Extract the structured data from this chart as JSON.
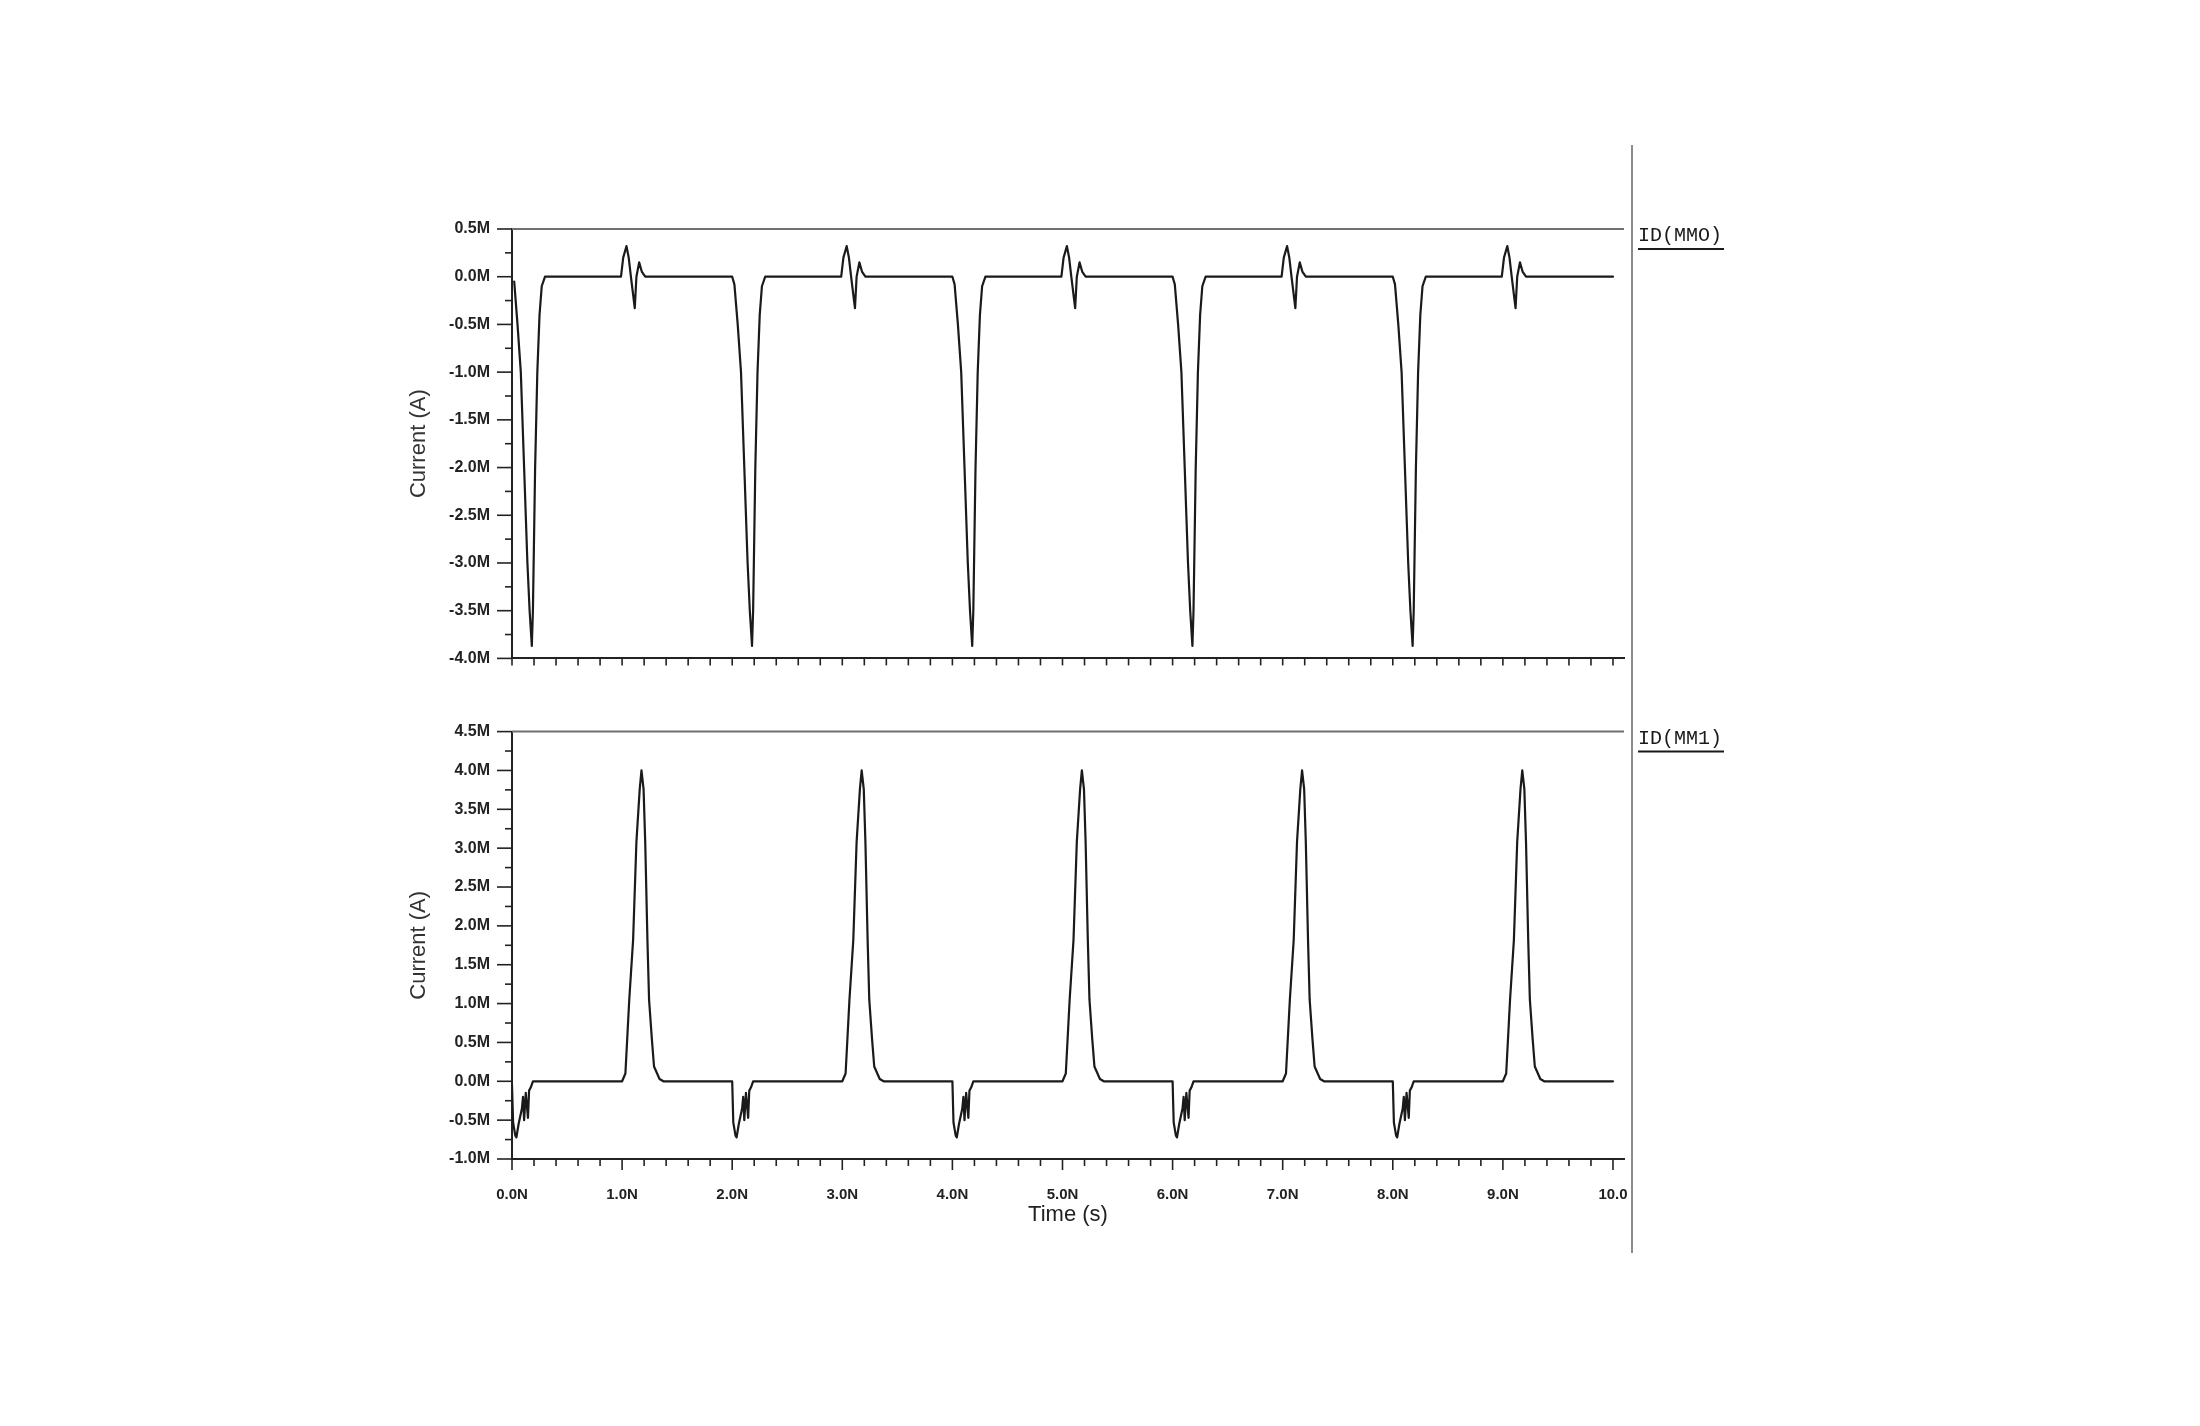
{
  "chart_data": [
    {
      "type": "line",
      "ylabel": "Current (A)",
      "legend": "top right",
      "marker": "none",
      "tick_labels": "y",
      "xlim": [
        0,
        10.1
      ],
      "xticks": [
        {
          "value": 0,
          "label": null
        },
        {
          "value": 0.2,
          "label": null
        },
        {
          "value": 0.4,
          "label": null
        },
        {
          "value": 0.6,
          "label": null
        },
        {
          "value": 0.8,
          "label": null
        },
        {
          "value": 1,
          "label": null
        },
        {
          "value": 1.2,
          "label": null
        },
        {
          "value": 1.4,
          "label": null
        },
        {
          "value": 1.6,
          "label": null
        },
        {
          "value": 1.8,
          "label": null
        },
        {
          "value": 2,
          "label": null
        },
        {
          "value": 2.2,
          "label": null
        },
        {
          "value": 2.4,
          "label": null
        },
        {
          "value": 2.6,
          "label": null
        },
        {
          "value": 2.8,
          "label": null
        },
        {
          "value": 3,
          "label": null
        },
        {
          "value": 3.2,
          "label": null
        },
        {
          "value": 3.4,
          "label": null
        },
        {
          "value": 3.6,
          "label": null
        },
        {
          "value": 3.8,
          "label": null
        },
        {
          "value": 4,
          "label": null
        },
        {
          "value": 4.2,
          "label": null
        },
        {
          "value": 4.4,
          "label": null
        },
        {
          "value": 4.6,
          "label": null
        },
        {
          "value": 4.8,
          "label": null
        },
        {
          "value": 5,
          "label": null
        },
        {
          "value": 5.2,
          "label": null
        },
        {
          "value": 5.4,
          "label": null
        },
        {
          "value": 5.6,
          "label": null
        },
        {
          "value": 5.8,
          "label": null
        },
        {
          "value": 6,
          "label": null
        },
        {
          "value": 6.2,
          "label": null
        },
        {
          "value": 6.4,
          "label": null
        },
        {
          "value": 6.6,
          "label": null
        },
        {
          "value": 6.8,
          "label": null
        },
        {
          "value": 7,
          "label": null
        },
        {
          "value": 7.2,
          "label": null
        },
        {
          "value": 7.4,
          "label": null
        },
        {
          "value": 7.6,
          "label": null
        },
        {
          "value": 7.8,
          "label": null
        },
        {
          "value": 8,
          "label": null
        },
        {
          "value": 8.2,
          "label": null
        },
        {
          "value": 8.4,
          "label": null
        },
        {
          "value": 8.6,
          "label": null
        },
        {
          "value": 8.8,
          "label": null
        },
        {
          "value": 9,
          "label": null
        },
        {
          "value": 9.2,
          "label": null
        },
        {
          "value": 9.4,
          "label": null
        },
        {
          "value": 9.6,
          "label": null
        },
        {
          "value": 9.8,
          "label": null
        },
        {
          "value": 10,
          "label": null
        }
      ],
      "ylim": [
        -4,
        0.5
      ],
      "yticks": [
        {
          "value": -4,
          "label": "-4.0M"
        },
        {
          "value": -3.75,
          "label": null
        },
        {
          "value": -3.5,
          "label": "-3.5M"
        },
        {
          "value": -3.25,
          "label": null
        },
        {
          "value": -3,
          "label": "-3.0M"
        },
        {
          "value": -2.75,
          "label": null
        },
        {
          "value": -2.5,
          "label": "-2.5M"
        },
        {
          "value": -2.25,
          "label": null
        },
        {
          "value": -2,
          "label": "-2.0M"
        },
        {
          "value": -1.75,
          "label": null
        },
        {
          "value": -1.5,
          "label": "-1.5M"
        },
        {
          "value": -1.25,
          "label": null
        },
        {
          "value": -1,
          "label": "-1.0M"
        },
        {
          "value": -0.75,
          "label": null
        },
        {
          "value": -0.5,
          "label": "-0.5M"
        },
        {
          "value": -0.25,
          "label": null
        },
        {
          "value": 0,
          "label": "0.0M"
        },
        {
          "value": 0.25,
          "label": null
        },
        {
          "value": 0.5,
          "label": "0.5M"
        }
      ],
      "x": [
        0.02,
        0.05,
        0.08,
        0.11,
        0.14,
        0.16,
        0.18,
        0.19,
        0.21,
        0.23,
        0.25,
        0.27,
        0.3,
        0.99,
        1.01,
        1.04,
        1.06,
        1.08,
        1.115,
        1.13,
        1.155,
        1.18,
        1.21,
        2,
        2.02,
        2.05,
        2.08,
        2.11,
        2.14,
        2.16,
        2.18,
        2.19,
        2.21,
        2.23,
        2.25,
        2.27,
        2.3,
        2.99,
        3.01,
        3.04,
        3.06,
        3.08,
        3.115,
        3.13,
        3.155,
        3.18,
        3.21,
        4,
        4.02,
        4.05,
        4.08,
        4.11,
        4.14,
        4.16,
        4.18,
        4.19,
        4.21,
        4.23,
        4.25,
        4.27,
        4.3,
        4.99,
        5.01,
        5.04,
        5.06,
        5.08,
        5.115,
        5.13,
        5.155,
        5.18,
        5.21,
        6,
        6.02,
        6.05,
        6.08,
        6.11,
        6.14,
        6.16,
        6.18,
        6.19,
        6.21,
        6.23,
        6.25,
        6.27,
        6.3,
        6.99,
        7.01,
        7.04,
        7.06,
        7.08,
        7.115,
        7.13,
        7.155,
        7.18,
        7.21,
        8,
        8.02,
        8.05,
        8.08,
        8.11,
        8.14,
        8.16,
        8.18,
        8.19,
        8.21,
        8.23,
        8.25,
        8.27,
        8.3,
        8.99,
        9.01,
        9.04,
        9.06,
        9.08,
        9.115,
        9.13,
        9.155,
        9.18,
        9.21,
        10
      ],
      "series": [
        {
          "name": "ID(MMO)",
          "color": "#1a1a1a",
          "values": [
            -0.05,
            -0.5,
            -1,
            -2,
            -3,
            -3.5,
            -3.87,
            -3.5,
            -2,
            -1,
            -0.4,
            -0.1,
            0,
            0,
            0.2,
            0.32,
            0.2,
            0,
            -0.33,
            0,
            0.15,
            0.05,
            0,
            0,
            -0.08,
            -0.5,
            -1,
            -2,
            -3,
            -3.5,
            -3.87,
            -3.5,
            -2,
            -1,
            -0.4,
            -0.1,
            0,
            0,
            0.2,
            0.32,
            0.2,
            0,
            -0.33,
            0,
            0.15,
            0.05,
            0,
            0,
            -0.08,
            -0.5,
            -1,
            -2,
            -3,
            -3.5,
            -3.87,
            -3.5,
            -2,
            -1,
            -0.4,
            -0.1,
            0,
            0,
            0.2,
            0.32,
            0.2,
            0,
            -0.33,
            0,
            0.15,
            0.05,
            0,
            0,
            -0.08,
            -0.5,
            -1,
            -2,
            -3,
            -3.5,
            -3.87,
            -3.5,
            -2,
            -1,
            -0.4,
            -0.1,
            0,
            0,
            0.2,
            0.32,
            0.2,
            0,
            -0.33,
            0,
            0.15,
            0.05,
            0,
            0,
            -0.08,
            -0.5,
            -1,
            -2,
            -3,
            -3.5,
            -3.87,
            -3.5,
            -2,
            -1,
            -0.4,
            -0.1,
            0,
            0,
            0.2,
            0.32,
            0.2,
            0,
            -0.33,
            0,
            0.15,
            0.05,
            0,
            0
          ]
        }
      ]
    },
    {
      "type": "line",
      "xlabel": "Time (s)",
      "ylabel": "Current (A)",
      "legend": "top right",
      "marker": "none",
      "xlim": [
        0,
        10.1
      ],
      "xticks": [
        {
          "value": 0,
          "label": "0.0N"
        },
        {
          "value": 0.2,
          "label": null
        },
        {
          "value": 0.4,
          "label": null
        },
        {
          "value": 0.6,
          "label": null
        },
        {
          "value": 0.8,
          "label": null
        },
        {
          "value": 1,
          "label": "1.0N"
        },
        {
          "value": 1.2,
          "label": null
        },
        {
          "value": 1.4,
          "label": null
        },
        {
          "value": 1.6,
          "label": null
        },
        {
          "value": 1.8,
          "label": null
        },
        {
          "value": 2,
          "label": "2.0N"
        },
        {
          "value": 2.2,
          "label": null
        },
        {
          "value": 2.4,
          "label": null
        },
        {
          "value": 2.6,
          "label": null
        },
        {
          "value": 2.8,
          "label": null
        },
        {
          "value": 3,
          "label": "3.0N"
        },
        {
          "value": 3.2,
          "label": null
        },
        {
          "value": 3.4,
          "label": null
        },
        {
          "value": 3.6,
          "label": null
        },
        {
          "value": 3.8,
          "label": null
        },
        {
          "value": 4,
          "label": "4.0N"
        },
        {
          "value": 4.2,
          "label": null
        },
        {
          "value": 4.4,
          "label": null
        },
        {
          "value": 4.6,
          "label": null
        },
        {
          "value": 4.8,
          "label": null
        },
        {
          "value": 5,
          "label": "5.0N"
        },
        {
          "value": 5.2,
          "label": null
        },
        {
          "value": 5.4,
          "label": null
        },
        {
          "value": 5.6,
          "label": null
        },
        {
          "value": 5.8,
          "label": null
        },
        {
          "value": 6,
          "label": "6.0N"
        },
        {
          "value": 6.2,
          "label": null
        },
        {
          "value": 6.4,
          "label": null
        },
        {
          "value": 6.6,
          "label": null
        },
        {
          "value": 6.8,
          "label": null
        },
        {
          "value": 7,
          "label": "7.0N"
        },
        {
          "value": 7.2,
          "label": null
        },
        {
          "value": 7.4,
          "label": null
        },
        {
          "value": 7.6,
          "label": null
        },
        {
          "value": 7.8,
          "label": null
        },
        {
          "value": 8,
          "label": "8.0N"
        },
        {
          "value": 8.2,
          "label": null
        },
        {
          "value": 8.4,
          "label": null
        },
        {
          "value": 8.6,
          "label": null
        },
        {
          "value": 8.8,
          "label": null
        },
        {
          "value": 9,
          "label": "9.0N"
        },
        {
          "value": 9.2,
          "label": null
        },
        {
          "value": 9.4,
          "label": null
        },
        {
          "value": 9.6,
          "label": null
        },
        {
          "value": 9.8,
          "label": null
        },
        {
          "value": 10,
          "label": "10.0"
        }
      ],
      "ylim": [
        -1,
        4.5
      ],
      "yticks": [
        {
          "value": -1,
          "label": "-1.0M"
        },
        {
          "value": -0.75,
          "label": null
        },
        {
          "value": -0.5,
          "label": "-0.5M"
        },
        {
          "value": -0.25,
          "label": null
        },
        {
          "value": 0,
          "label": "0.0M"
        },
        {
          "value": 0.25,
          "label": null
        },
        {
          "value": 0.5,
          "label": "0.5M"
        },
        {
          "value": 0.75,
          "label": null
        },
        {
          "value": 1,
          "label": "1.0M"
        },
        {
          "value": 1.25,
          "label": null
        },
        {
          "value": 1.5,
          "label": "1.5M"
        },
        {
          "value": 1.75,
          "label": null
        },
        {
          "value": 2,
          "label": "2.0M"
        },
        {
          "value": 2.25,
          "label": null
        },
        {
          "value": 2.5,
          "label": "2.5M"
        },
        {
          "value": 2.75,
          "label": null
        },
        {
          "value": 3,
          "label": "3.0M"
        },
        {
          "value": 3.25,
          "label": null
        },
        {
          "value": 3.5,
          "label": "3.5M"
        },
        {
          "value": 3.75,
          "label": null
        },
        {
          "value": 4,
          "label": "4.0M"
        },
        {
          "value": 4.25,
          "label": null
        },
        {
          "value": 4.5,
          "label": "4.5M"
        }
      ],
      "x": [
        0,
        0.01,
        0.03,
        0.04,
        0.06,
        0.09,
        0.1,
        0.11,
        0.125,
        0.145,
        0.155,
        0.17,
        0.19,
        1,
        1.03,
        1.065,
        1.1,
        1.13,
        1.16,
        1.176,
        1.195,
        1.21,
        1.23,
        1.245,
        1.27,
        1.29,
        1.34,
        1.375,
        2,
        2.01,
        2.03,
        2.04,
        2.06,
        2.09,
        2.1,
        2.11,
        2.125,
        2.145,
        2.155,
        2.17,
        2.19,
        3,
        3.03,
        3.065,
        3.1,
        3.13,
        3.16,
        3.176,
        3.195,
        3.21,
        3.23,
        3.245,
        3.27,
        3.29,
        3.34,
        3.375,
        4,
        4.01,
        4.03,
        4.04,
        4.06,
        4.09,
        4.1,
        4.11,
        4.125,
        4.145,
        4.155,
        4.17,
        4.19,
        5,
        5.03,
        5.065,
        5.1,
        5.13,
        5.16,
        5.176,
        5.195,
        5.21,
        5.23,
        5.245,
        5.27,
        5.29,
        5.34,
        5.375,
        6,
        6.01,
        6.03,
        6.04,
        6.06,
        6.09,
        6.1,
        6.11,
        6.125,
        6.145,
        6.155,
        6.17,
        6.19,
        7,
        7.03,
        7.065,
        7.1,
        7.13,
        7.16,
        7.176,
        7.195,
        7.21,
        7.23,
        7.245,
        7.27,
        7.29,
        7.34,
        7.375,
        8,
        8.01,
        8.03,
        8.04,
        8.06,
        8.09,
        8.1,
        8.11,
        8.125,
        8.145,
        8.155,
        8.17,
        8.19,
        9,
        9.03,
        9.065,
        9.1,
        9.13,
        9.16,
        9.176,
        9.195,
        9.21,
        9.23,
        9.245,
        9.27,
        9.29,
        9.34,
        9.375,
        10
      ],
      "series": [
        {
          "name": "ID(MM1)",
          "color": "#1a1a1a",
          "values": [
            -0.05,
            -0.53,
            -0.7,
            -0.72,
            -0.55,
            -0.35,
            -0.2,
            -0.5,
            -0.15,
            -0.47,
            -0.12,
            -0.08,
            0,
            0,
            0.1,
            1.05,
            1.82,
            3.08,
            3.76,
            4,
            3.76,
            3.08,
            1.82,
            1.05,
            0.55,
            0.19,
            0.03,
            0,
            0,
            -0.53,
            -0.7,
            -0.72,
            -0.55,
            -0.35,
            -0.2,
            -0.5,
            -0.15,
            -0.47,
            -0.12,
            -0.08,
            0,
            0,
            0.1,
            1.05,
            1.82,
            3.08,
            3.76,
            4,
            3.76,
            3.08,
            1.82,
            1.05,
            0.55,
            0.19,
            0.03,
            0,
            0,
            -0.53,
            -0.7,
            -0.72,
            -0.55,
            -0.35,
            -0.2,
            -0.5,
            -0.15,
            -0.47,
            -0.12,
            -0.08,
            0,
            0,
            0.1,
            1.05,
            1.82,
            3.08,
            3.76,
            4,
            3.76,
            3.08,
            1.82,
            1.05,
            0.55,
            0.19,
            0.03,
            0,
            0,
            -0.53,
            -0.7,
            -0.72,
            -0.55,
            -0.35,
            -0.2,
            -0.5,
            -0.15,
            -0.47,
            -0.12,
            -0.08,
            0,
            0,
            0.1,
            1.05,
            1.82,
            3.08,
            3.76,
            4,
            3.76,
            3.08,
            1.82,
            1.05,
            0.55,
            0.19,
            0.03,
            0,
            0,
            -0.53,
            -0.7,
            -0.72,
            -0.55,
            -0.35,
            -0.2,
            -0.5,
            -0.15,
            -0.47,
            -0.12,
            -0.08,
            0,
            0,
            0.1,
            1.05,
            1.82,
            3.08,
            3.76,
            4,
            3.76,
            3.08,
            1.82,
            1.05,
            0.55,
            0.19,
            0.03,
            0,
            0
          ]
        }
      ]
    }
  ]
}
